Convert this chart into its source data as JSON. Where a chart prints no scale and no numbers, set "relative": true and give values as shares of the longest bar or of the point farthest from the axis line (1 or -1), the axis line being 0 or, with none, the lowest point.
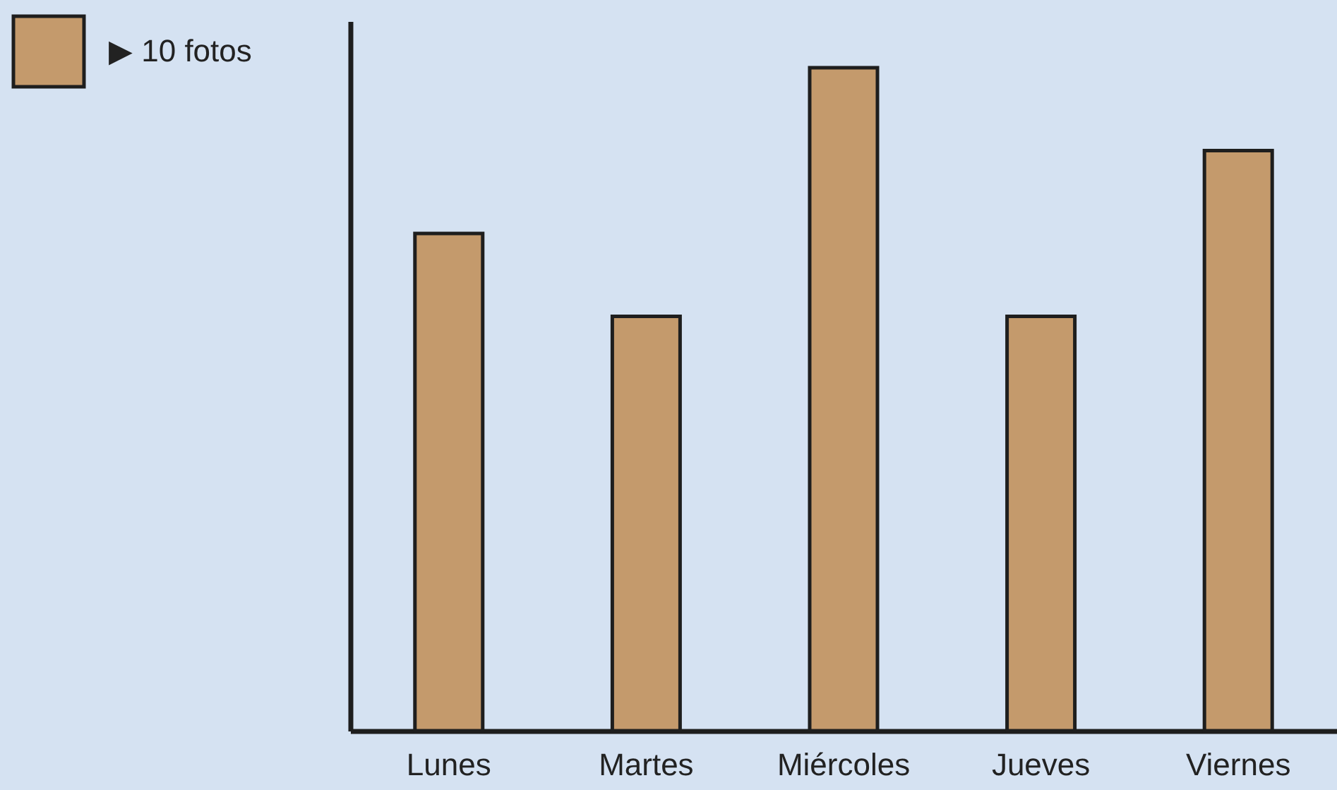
{
  "chart_data": {
    "type": "bar",
    "categories": [
      "Lunes",
      "Martes",
      "Miércoles",
      "Jueves",
      "Viernes"
    ],
    "series": [
      {
        "name": "▶ 10 fotos",
        "color": "#c49a6c",
        "values": [
          0.75,
          0.625,
          1,
          0.625,
          0.875
        ]
      }
    ],
    "relative": true,
    "legend": "top left",
    "tick_labels": "x"
  }
}
